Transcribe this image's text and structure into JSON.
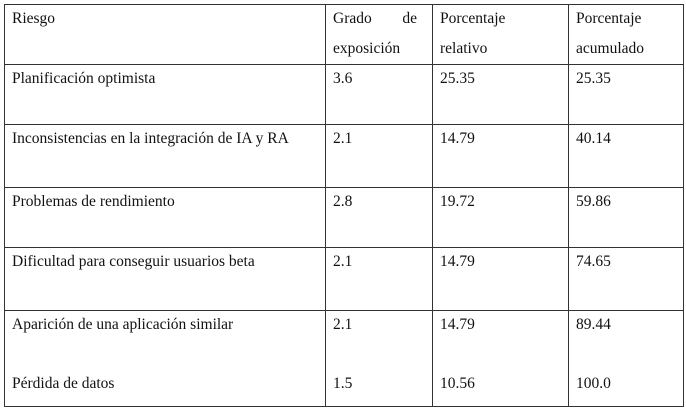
{
  "table": {
    "header": [
      "Riesgo",
      "Grado de exposición",
      "Porcentaje relativo",
      "Porcentaje acumulado"
    ],
    "rows": [
      [
        "Planificación optimista",
        "3.6",
        "25.35",
        "25.35"
      ],
      [
        "Inconsistencias en la integración de IA y RA",
        "2.1",
        "14.79",
        "40.14"
      ],
      [
        "Problemas de rendimiento",
        "2.8",
        "19.72",
        "59.86"
      ],
      [
        "Dificultad para conseguir usuarios beta",
        "2.1",
        "14.79",
        "74.65"
      ],
      [
        "Aparición de una aplicación similar",
        "2.1",
        "14.79",
        "89.44"
      ],
      [
        "Pérdida de datos",
        "1.5",
        "10.56",
        "100.0"
      ]
    ]
  }
}
